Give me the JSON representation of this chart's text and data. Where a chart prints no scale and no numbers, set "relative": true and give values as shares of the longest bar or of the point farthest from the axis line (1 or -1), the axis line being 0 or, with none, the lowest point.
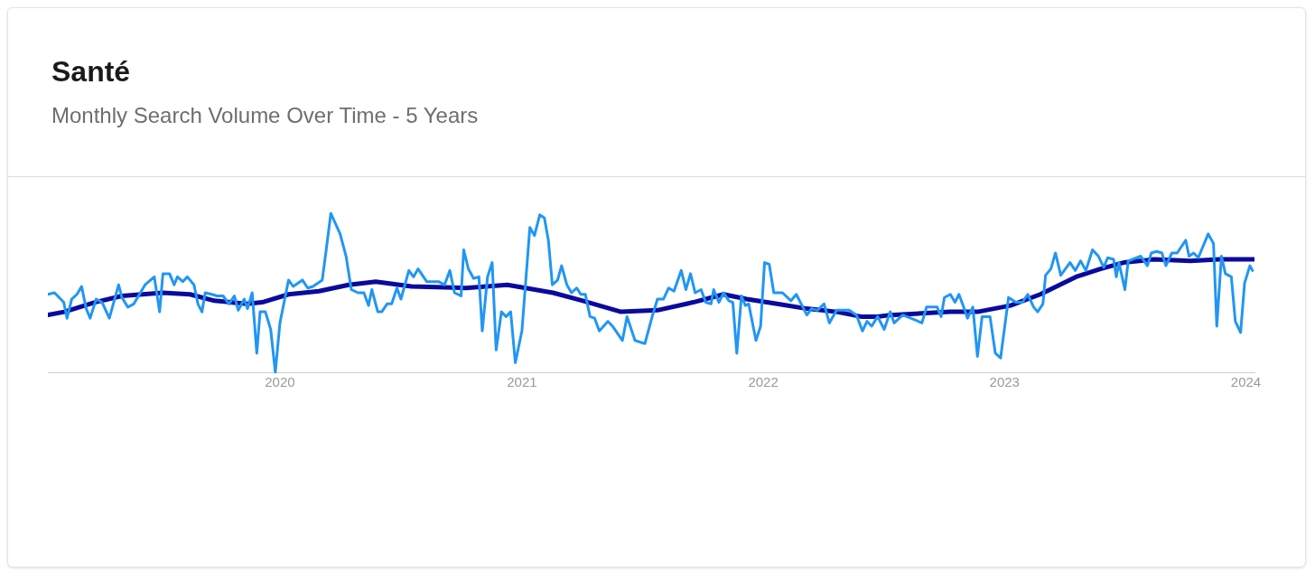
{
  "chart_data": {
    "type": "line",
    "title": "Santé",
    "subtitle": "Monthly Search Volume Over Time - 5 Years",
    "relative": true,
    "legend": false,
    "xlim": [
      "2019-01-15",
      "2024-01-14"
    ],
    "xticks": [
      "2020",
      "2021",
      "2022",
      "2023",
      "2024"
    ],
    "series": [
      {
        "color": "#2196f3",
        "x": [
          "2019-01-15",
          "2019-01-25",
          "2019-02-08",
          "2019-02-13",
          "2019-02-20",
          "2019-02-28",
          "2019-03-07",
          "2019-03-14",
          "2019-03-20",
          "2019-03-29",
          "2019-04-07",
          "2019-04-18",
          "2019-05-02",
          "2019-05-07",
          "2019-05-16",
          "2019-05-25",
          "2019-06-11",
          "2019-06-25",
          "2019-07-03",
          "2019-07-08",
          "2019-07-18",
          "2019-07-25",
          "2019-07-30",
          "2019-08-07",
          "2019-08-14",
          "2019-08-24",
          "2019-08-30",
          "2019-09-05",
          "2019-09-10",
          "2019-09-20",
          "2019-09-28",
          "2019-10-07",
          "2019-10-16",
          "2019-10-24",
          "2019-10-30",
          "2019-11-08",
          "2019-11-13",
          "2019-11-20",
          "2019-11-27",
          "2019-12-02",
          "2019-12-10",
          "2019-12-18",
          "2019-12-25",
          "2020-01-01",
          "2020-01-14",
          "2020-01-21",
          "2020-02-04",
          "2020-02-12",
          "2020-02-20",
          "2020-03-05",
          "2020-03-11",
          "2020-03-18",
          "2020-04-01",
          "2020-04-10",
          "2020-04-18",
          "2020-04-28",
          "2020-05-07",
          "2020-05-14",
          "2020-05-19",
          "2020-05-28",
          "2020-06-03",
          "2020-06-11",
          "2020-06-18",
          "2020-06-26",
          "2020-07-02",
          "2020-07-14",
          "2020-07-21",
          "2020-07-28",
          "2020-08-10",
          "2020-08-28",
          "2020-09-06",
          "2020-09-14",
          "2020-09-21",
          "2020-10-01",
          "2020-10-05",
          "2020-10-12",
          "2020-10-20",
          "2020-10-28",
          "2020-11-02",
          "2020-11-10",
          "2020-11-17",
          "2020-11-23",
          "2020-12-01",
          "2020-12-08",
          "2020-12-15",
          "2020-12-22",
          "2021-01-01",
          "2021-01-13",
          "2021-01-20",
          "2021-01-28",
          "2021-02-04",
          "2021-02-10",
          "2021-02-16",
          "2021-02-24",
          "2021-03-02",
          "2021-03-10",
          "2021-03-17",
          "2021-03-25",
          "2021-03-31",
          "2021-04-07",
          "2021-04-14",
          "2021-04-21",
          "2021-04-28",
          "2021-05-11",
          "2021-05-18",
          "2021-06-02",
          "2021-06-09",
          "2021-06-21",
          "2021-07-06",
          "2021-07-17",
          "2021-07-25",
          "2021-08-03",
          "2021-08-11",
          "2021-08-19",
          "2021-08-30",
          "2021-09-06",
          "2021-09-13",
          "2021-09-20",
          "2021-09-29",
          "2021-10-06",
          "2021-10-14",
          "2021-10-18",
          "2021-10-26",
          "2021-11-02",
          "2021-11-10",
          "2021-11-16",
          "2021-11-22",
          "2021-11-29",
          "2021-12-05",
          "2021-12-10",
          "2021-12-21",
          "2021-12-28",
          "2022-01-03",
          "2022-01-10",
          "2022-01-17",
          "2022-01-30",
          "2022-02-12",
          "2022-02-20",
          "2022-03-08",
          "2022-03-15",
          "2022-03-24",
          "2022-04-03",
          "2022-04-11",
          "2022-04-22",
          "2022-05-11",
          "2022-05-22",
          "2022-05-31",
          "2022-06-07",
          "2022-06-14",
          "2022-06-23",
          "2022-07-03",
          "2022-07-12",
          "2022-07-18",
          "2022-07-31",
          "2022-08-18",
          "2022-08-29",
          "2022-09-05",
          "2022-09-21",
          "2022-09-27",
          "2022-10-02",
          "2022-10-11",
          "2022-10-18",
          "2022-10-24",
          "2022-11-01",
          "2022-11-06",
          "2022-11-14",
          "2022-11-21",
          "2022-11-28",
          "2022-12-10",
          "2022-12-18",
          "2022-12-26",
          "2023-01-07",
          "2023-01-18",
          "2023-01-28",
          "2023-02-05",
          "2023-02-14",
          "2023-02-20",
          "2023-02-28",
          "2023-03-04",
          "2023-03-12",
          "2023-03-19",
          "2023-03-27",
          "2023-04-10",
          "2023-04-18",
          "2023-04-26",
          "2023-05-04",
          "2023-05-14",
          "2023-05-23",
          "2023-05-31",
          "2023-06-06",
          "2023-06-15",
          "2023-06-19",
          "2023-06-23",
          "2023-07-02",
          "2023-07-07",
          "2023-07-26",
          "2023-08-05",
          "2023-08-11",
          "2023-08-19",
          "2023-08-27",
          "2023-09-02",
          "2023-09-11",
          "2023-09-19",
          "2023-10-02",
          "2023-10-07",
          "2023-10-14",
          "2023-10-21",
          "2023-11-05",
          "2023-11-13",
          "2023-11-18",
          "2023-11-25",
          "2023-12-01",
          "2023-12-10",
          "2023-12-16",
          "2023-12-24",
          "2023-12-30",
          "2024-01-07",
          "2024-01-11"
        ],
        "values": [
          0.49,
          0.5,
          0.44,
          0.34,
          0.46,
          0.49,
          0.54,
          0.4,
          0.34,
          0.46,
          0.44,
          0.34,
          0.55,
          0.47,
          0.41,
          0.43,
          0.55,
          0.6,
          0.38,
          0.62,
          0.62,
          0.55,
          0.6,
          0.57,
          0.6,
          0.55,
          0.43,
          0.38,
          0.5,
          0.49,
          0.48,
          0.48,
          0.43,
          0.48,
          0.39,
          0.46,
          0.4,
          0.5,
          0.12,
          0.38,
          0.38,
          0.27,
          0,
          0.31,
          0.58,
          0.54,
          0.58,
          0.53,
          0.54,
          0.58,
          0.77,
          1,
          0.87,
          0.73,
          0.52,
          0.5,
          0.5,
          0.42,
          0.52,
          0.38,
          0.38,
          0.43,
          0.43,
          0.53,
          0.46,
          0.64,
          0.6,
          0.65,
          0.57,
          0.57,
          0.55,
          0.64,
          0.5,
          0.48,
          0.77,
          0.65,
          0.59,
          0.6,
          0.26,
          0.6,
          0.69,
          0.14,
          0.38,
          0.35,
          0.38,
          0.06,
          0.26,
          0.91,
          0.86,
          0.99,
          0.97,
          0.83,
          0.55,
          0.58,
          0.67,
          0.55,
          0.5,
          0.53,
          0.49,
          0.49,
          0.35,
          0.34,
          0.26,
          0.32,
          0.29,
          0.2,
          0.35,
          0.2,
          0.18,
          0.35,
          0.46,
          0.46,
          0.53,
          0.51,
          0.64,
          0.52,
          0.62,
          0.5,
          0.52,
          0.44,
          0.43,
          0.52,
          0.44,
          0.5,
          0.45,
          0.44,
          0.12,
          0.48,
          0.42,
          0.43,
          0.2,
          0.29,
          0.69,
          0.68,
          0.5,
          0.5,
          0.45,
          0.49,
          0.36,
          0.4,
          0.39,
          0.43,
          0.31,
          0.39,
          0.39,
          0.36,
          0.26,
          0.32,
          0.29,
          0.35,
          0.27,
          0.38,
          0.31,
          0.36,
          0.33,
          0.31,
          0.41,
          0.41,
          0.35,
          0.47,
          0.49,
          0.44,
          0.49,
          0.4,
          0.34,
          0.41,
          0.1,
          0.35,
          0.35,
          0.12,
          0.09,
          0.47,
          0.44,
          0.44,
          0.49,
          0.41,
          0.38,
          0.43,
          0.61,
          0.65,
          0.75,
          0.61,
          0.69,
          0.64,
          0.7,
          0.64,
          0.77,
          0.73,
          0.66,
          0.72,
          0.71,
          0.6,
          0.69,
          0.52,
          0.7,
          0.73,
          0.67,
          0.75,
          0.76,
          0.75,
          0.67,
          0.75,
          0.75,
          0.83,
          0.73,
          0.75,
          0.72,
          0.87,
          0.81,
          0.29,
          0.73,
          0.62,
          0.6,
          0.32,
          0.25,
          0.56,
          0.67,
          0.64
        ]
      },
      {
        "color": "#0a0a9e",
        "x": [
          "2019-01-15",
          "2019-02-09",
          "2019-03-27",
          "2019-05-07",
          "2019-07-08",
          "2019-08-18",
          "2019-09-24",
          "2019-11-13",
          "2019-12-05",
          "2020-01-14",
          "2020-02-29",
          "2020-04-14",
          "2020-05-25",
          "2020-07-18",
          "2020-10-08",
          "2020-12-10",
          "2021-02-17",
          "2021-04-03",
          "2021-05-31",
          "2021-07-25",
          "2021-09-17",
          "2021-11-02",
          "2021-12-07",
          "2022-01-22",
          "2022-03-08",
          "2022-04-22",
          "2022-05-29",
          "2022-06-23",
          "2022-07-12",
          "2022-10-11",
          "2022-11-21",
          "2023-01-10",
          "2023-02-24",
          "2023-04-19",
          "2023-05-26",
          "2023-06-30",
          "2023-08-15",
          "2023-10-09",
          "2023-11-22",
          "2024-01-14"
        ],
        "values": [
          0.36,
          0.38,
          0.44,
          0.48,
          0.5,
          0.49,
          0.45,
          0.43,
          0.44,
          0.49,
          0.51,
          0.55,
          0.57,
          0.54,
          0.53,
          0.55,
          0.5,
          0.45,
          0.38,
          0.39,
          0.44,
          0.49,
          0.46,
          0.43,
          0.4,
          0.38,
          0.35,
          0.35,
          0.36,
          0.38,
          0.38,
          0.42,
          0.49,
          0.6,
          0.65,
          0.69,
          0.71,
          0.7,
          0.71,
          0.71
        ]
      }
    ]
  }
}
